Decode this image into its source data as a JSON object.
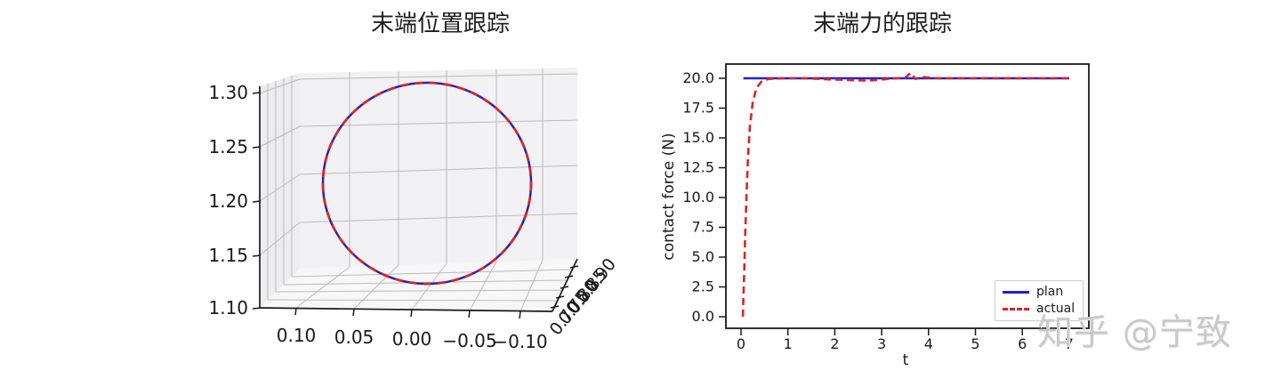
{
  "page": {
    "background": "#ffffff"
  },
  "watermark": {
    "text": "知乎 @宁致",
    "color": "#c9c9c9"
  },
  "left_plot": {
    "title": "末端位置跟踪",
    "z_tick_labels": [
      "1.30",
      "1.25",
      "1.20",
      "1.15",
      "1.10"
    ],
    "x_tick_labels": [
      "0.10",
      "0.05",
      "0.00",
      "−0.05",
      "−0.10"
    ],
    "y_tick_labels": [
      "0.90",
      "0.85",
      "0.80",
      "0.75",
      "0.70"
    ],
    "pane_color": "#f2f2f4",
    "grid_color": "#bbbbbb"
  },
  "right_plot": {
    "title": "末端力的跟踪",
    "ylabel": "contact force (N)",
    "xlabel": "t",
    "y_tick_labels": [
      "20.0",
      "17.5",
      "15.0",
      "12.5",
      "10.0",
      "7.5",
      "5.0",
      "2.5",
      "0.0"
    ],
    "x_tick_labels": [
      "0",
      "1",
      "2",
      "3",
      "4",
      "5",
      "6",
      "7"
    ],
    "legend": {
      "items": [
        {
          "label": "plan",
          "color": "#2121cc",
          "style": "solid"
        },
        {
          "label": "actual",
          "color": "#e02222",
          "style": "dashed"
        }
      ]
    }
  },
  "chart_data": [
    {
      "type": "line",
      "projection": "3d",
      "title": "末端位置跟踪",
      "description": "Planned vs actual end-effector position tracking: circular trajectory in 3D, actual (red dashed) overlaps plan (blue solid)",
      "x_ticks": [
        0.1,
        0.05,
        0.0,
        -0.05,
        -0.1
      ],
      "y_ticks": [
        0.9,
        0.85,
        0.8,
        0.75,
        0.7
      ],
      "z_ticks": [
        1.3,
        1.25,
        1.2,
        1.15,
        1.1
      ],
      "grid": true,
      "series": [
        {
          "name": "plan",
          "color": "#2121cc",
          "style": "solid",
          "shape": "circle",
          "center_x": 0.0,
          "center_z": 1.215,
          "radius": 0.1
        },
        {
          "name": "actual",
          "color": "#e02222",
          "style": "dashed",
          "shape": "circle",
          "center_x": 0.0,
          "center_z": 1.215,
          "radius": 0.1
        }
      ]
    },
    {
      "type": "line",
      "title": "末端力的跟踪",
      "xlabel": "t",
      "ylabel": "contact force (N)",
      "xlim": [
        -0.33,
        7.44
      ],
      "ylim": [
        -1.1,
        21.2
      ],
      "x_ticks": [
        0,
        1,
        2,
        3,
        4,
        5,
        6,
        7
      ],
      "y_ticks": [
        0.0,
        2.5,
        5.0,
        7.5,
        10.0,
        12.5,
        15.0,
        17.5,
        20.0
      ],
      "grid": false,
      "legend_position": "lower right",
      "series": [
        {
          "name": "plan",
          "color": "#2121cc",
          "style": "solid",
          "points": [
            [
              0.05,
              20
            ],
            [
              7.0,
              20
            ]
          ]
        },
        {
          "name": "actual",
          "color": "#e02222",
          "style": "dashed",
          "points": [
            [
              0.04,
              0
            ],
            [
              0.05,
              1.5
            ],
            [
              0.07,
              4
            ],
            [
              0.09,
              7
            ],
            [
              0.12,
              10.5
            ],
            [
              0.15,
              13.5
            ],
            [
              0.19,
              16
            ],
            [
              0.25,
              18
            ],
            [
              0.33,
              19.2
            ],
            [
              0.45,
              19.8
            ],
            [
              0.6,
              19.95
            ],
            [
              0.9,
              20
            ],
            [
              1.4,
              20
            ],
            [
              1.9,
              19.9
            ],
            [
              2.3,
              19.85
            ],
            [
              2.7,
              19.8
            ],
            [
              3.0,
              19.9
            ],
            [
              3.3,
              20
            ],
            [
              3.5,
              20.05
            ],
            [
              3.62,
              20.45
            ],
            [
              3.72,
              19.95
            ],
            [
              3.9,
              20.1
            ],
            [
              4.2,
              20
            ],
            [
              5.0,
              20
            ],
            [
              6.0,
              20
            ],
            [
              7.0,
              20
            ]
          ]
        }
      ]
    }
  ]
}
